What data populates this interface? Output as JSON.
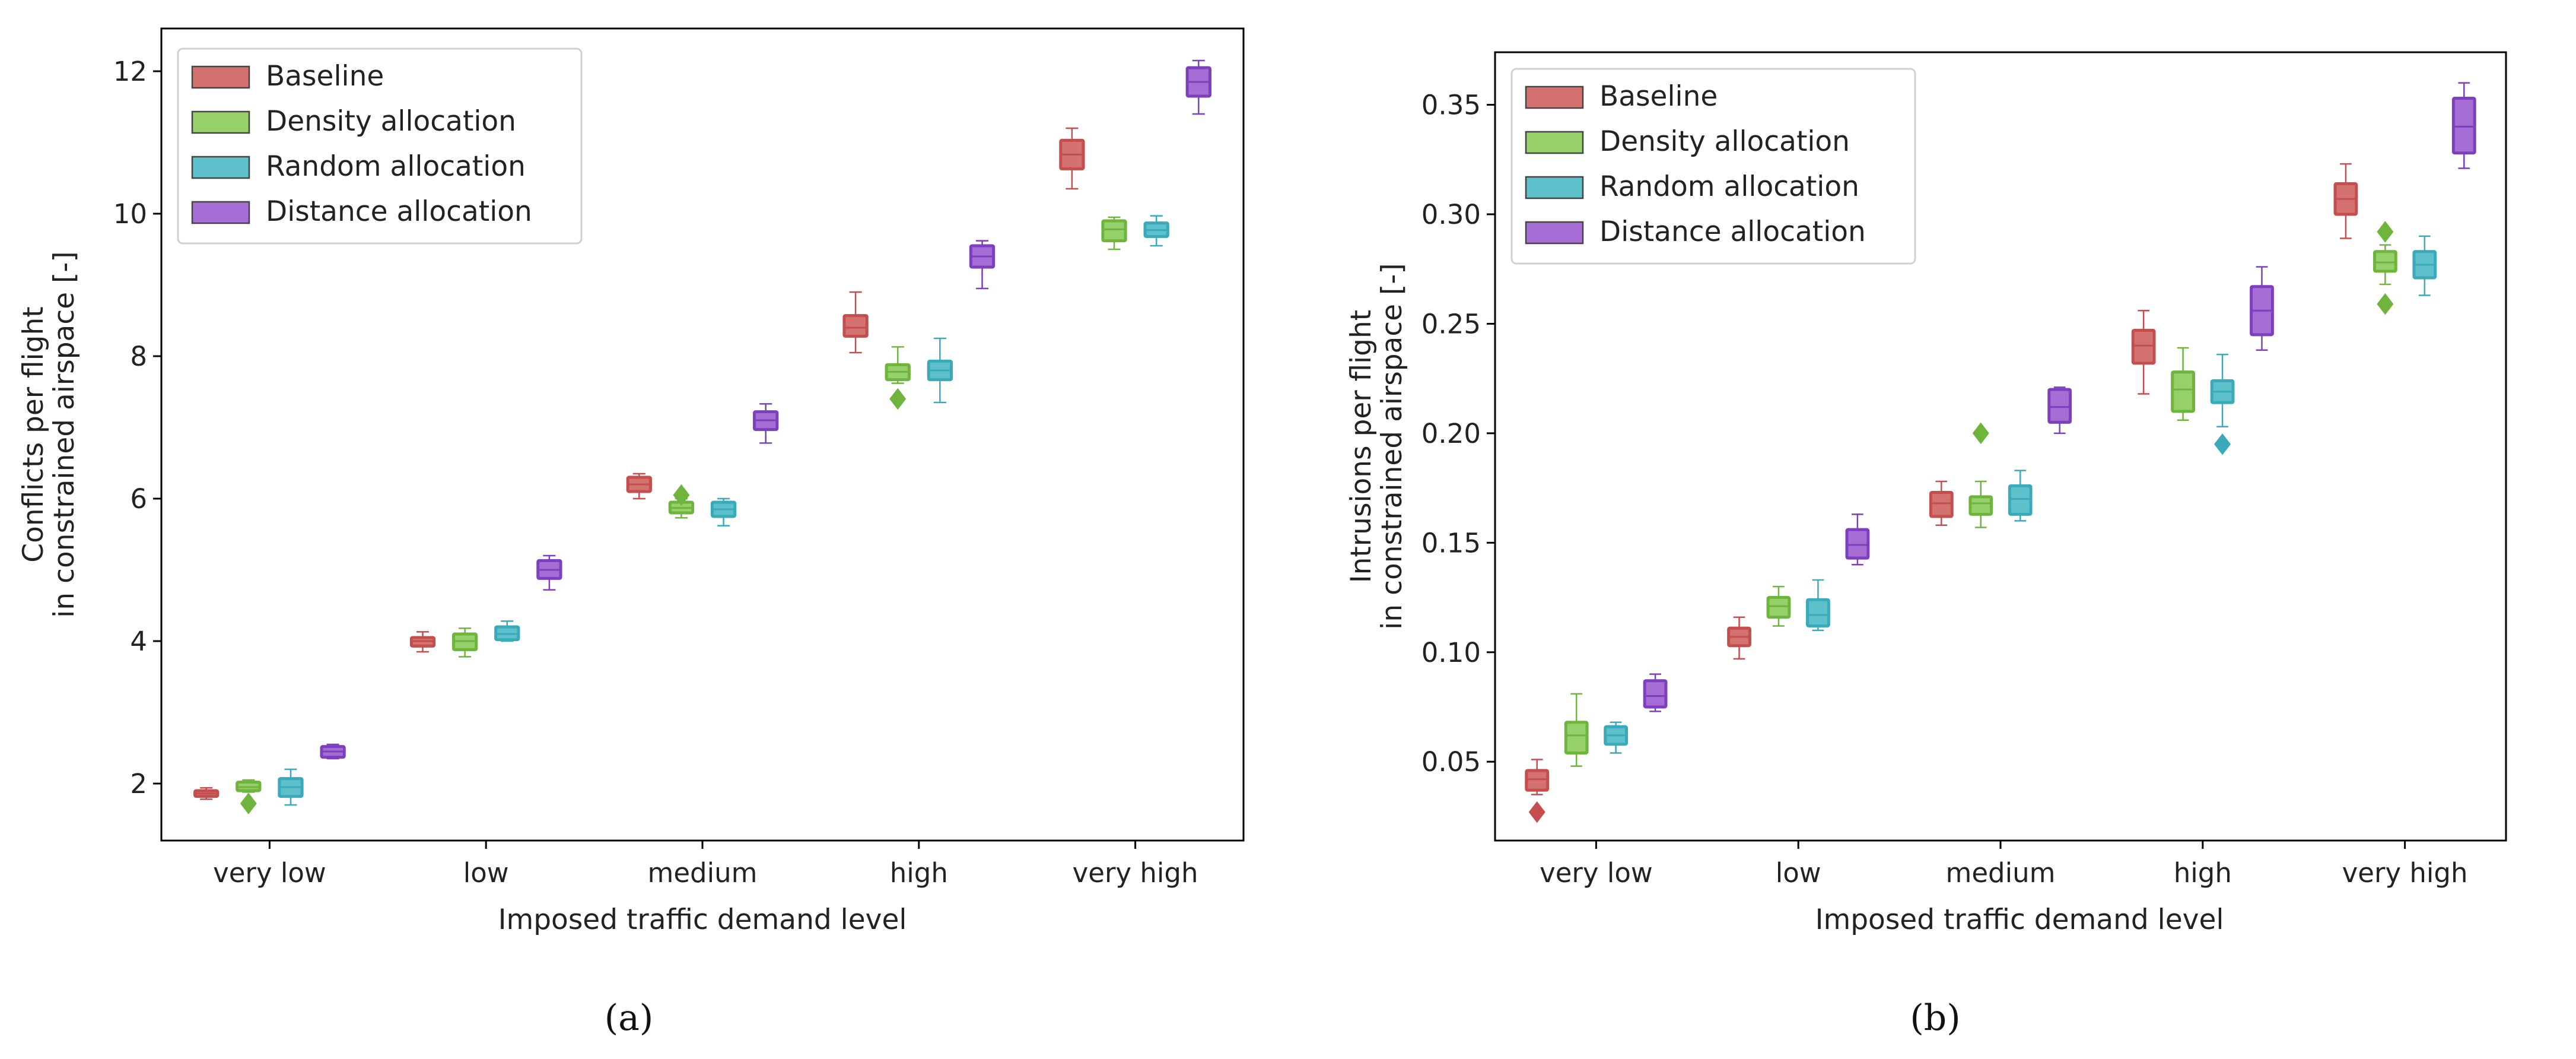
{
  "chart_data": [
    {
      "type": "box",
      "panel_label": "(a)",
      "xlabel": "Imposed traffic demand level",
      "ylabel_lines": [
        "Conflicts per flight",
        "in constrained airspace [-]"
      ],
      "categories": [
        "very low",
        "low",
        "medium",
        "high",
        "very high"
      ],
      "ylim": [
        1.2,
        12.6
      ],
      "yticks": [
        2,
        4,
        6,
        8,
        10,
        12
      ],
      "ytick_labels": [
        "2",
        "4",
        "6",
        "8",
        "10",
        "12"
      ],
      "legend_position": "top-left",
      "series": [
        {
          "name": "Baseline",
          "color": "#c44e4e",
          "fill": "#d47270",
          "boxes": [
            {
              "wlo": 1.78,
              "q1": 1.82,
              "med": 1.86,
              "q3": 1.9,
              "whi": 1.94,
              "fliers": []
            },
            {
              "wlo": 3.85,
              "q1": 3.93,
              "med": 4.0,
              "q3": 4.05,
              "whi": 4.13,
              "fliers": []
            },
            {
              "wlo": 6.0,
              "q1": 6.1,
              "med": 6.2,
              "q3": 6.3,
              "whi": 6.35,
              "fliers": []
            },
            {
              "wlo": 8.05,
              "q1": 8.28,
              "med": 8.4,
              "q3": 8.57,
              "whi": 8.9,
              "fliers": []
            },
            {
              "wlo": 10.35,
              "q1": 10.63,
              "med": 10.83,
              "q3": 11.03,
              "whi": 11.2,
              "fliers": []
            }
          ]
        },
        {
          "name": "Density allocation",
          "color": "#6fb43c",
          "fill": "#95d068",
          "boxes": [
            {
              "wlo": 1.88,
              "q1": 1.9,
              "med": 1.95,
              "q3": 2.02,
              "whi": 2.05,
              "fliers": [
                1.72
              ]
            },
            {
              "wlo": 3.78,
              "q1": 3.88,
              "med": 4.0,
              "q3": 4.1,
              "whi": 4.18,
              "fliers": []
            },
            {
              "wlo": 5.73,
              "q1": 5.8,
              "med": 5.87,
              "q3": 5.95,
              "whi": 6.0,
              "fliers": [
                6.05
              ]
            },
            {
              "wlo": 7.62,
              "q1": 7.67,
              "med": 7.78,
              "q3": 7.88,
              "whi": 8.13,
              "fliers": [
                7.4
              ]
            },
            {
              "wlo": 9.5,
              "q1": 9.62,
              "med": 9.78,
              "q3": 9.9,
              "whi": 9.95,
              "fliers": []
            }
          ]
        },
        {
          "name": "Random allocation",
          "color": "#3aaabb",
          "fill": "#5ec0cb",
          "boxes": [
            {
              "wlo": 1.7,
              "q1": 1.82,
              "med": 1.95,
              "q3": 2.07,
              "whi": 2.2,
              "fliers": []
            },
            {
              "wlo": 4.0,
              "q1": 4.02,
              "med": 4.1,
              "q3": 4.2,
              "whi": 4.28,
              "fliers": []
            },
            {
              "wlo": 5.62,
              "q1": 5.75,
              "med": 5.85,
              "q3": 5.95,
              "whi": 6.0,
              "fliers": []
            },
            {
              "wlo": 7.35,
              "q1": 7.67,
              "med": 7.8,
              "q3": 7.93,
              "whi": 8.25,
              "fliers": []
            },
            {
              "wlo": 9.55,
              "q1": 9.68,
              "med": 9.77,
              "q3": 9.87,
              "whi": 9.97,
              "fliers": []
            }
          ]
        },
        {
          "name": "Distance allocation",
          "color": "#7e3fbf",
          "fill": "#a66ed4",
          "boxes": [
            {
              "wlo": 2.35,
              "q1": 2.37,
              "med": 2.45,
              "q3": 2.52,
              "whi": 2.55,
              "fliers": []
            },
            {
              "wlo": 4.72,
              "q1": 4.88,
              "med": 5.0,
              "q3": 5.13,
              "whi": 5.2,
              "fliers": []
            },
            {
              "wlo": 6.78,
              "q1": 6.97,
              "med": 7.1,
              "q3": 7.22,
              "whi": 7.33,
              "fliers": []
            },
            {
              "wlo": 8.95,
              "q1": 9.25,
              "med": 9.4,
              "q3": 9.55,
              "whi": 9.62,
              "fliers": []
            },
            {
              "wlo": 11.4,
              "q1": 11.65,
              "med": 11.85,
              "q3": 12.05,
              "whi": 12.15,
              "fliers": []
            }
          ]
        }
      ]
    },
    {
      "type": "box",
      "panel_label": "(b)",
      "xlabel": "Imposed traffic demand level",
      "ylabel_lines": [
        "Intrusions per flight",
        "in constrained airspace [-]"
      ],
      "categories": [
        "very low",
        "low",
        "medium",
        "high",
        "very high"
      ],
      "ylim": [
        0.014,
        0.374
      ],
      "yticks": [
        0.05,
        0.1,
        0.15,
        0.2,
        0.25,
        0.3,
        0.35
      ],
      "ytick_labels": [
        "0.05",
        "0.10",
        "0.15",
        "0.20",
        "0.25",
        "0.30",
        "0.35"
      ],
      "legend_position": "top-left",
      "series": [
        {
          "name": "Baseline",
          "color": "#c44e4e",
          "fill": "#d47270",
          "boxes": [
            {
              "wlo": 0.035,
              "q1": 0.037,
              "med": 0.042,
              "q3": 0.046,
              "whi": 0.051,
              "fliers": [
                0.027
              ]
            },
            {
              "wlo": 0.097,
              "q1": 0.103,
              "med": 0.107,
              "q3": 0.111,
              "whi": 0.116,
              "fliers": []
            },
            {
              "wlo": 0.158,
              "q1": 0.162,
              "med": 0.168,
              "q3": 0.173,
              "whi": 0.178,
              "fliers": []
            },
            {
              "wlo": 0.218,
              "q1": 0.232,
              "med": 0.24,
              "q3": 0.247,
              "whi": 0.256,
              "fliers": []
            },
            {
              "wlo": 0.289,
              "q1": 0.3,
              "med": 0.307,
              "q3": 0.314,
              "whi": 0.323,
              "fliers": []
            }
          ]
        },
        {
          "name": "Density allocation",
          "color": "#6fb43c",
          "fill": "#95d068",
          "boxes": [
            {
              "wlo": 0.048,
              "q1": 0.054,
              "med": 0.062,
              "q3": 0.068,
              "whi": 0.081,
              "fliers": []
            },
            {
              "wlo": 0.112,
              "q1": 0.116,
              "med": 0.121,
              "q3": 0.125,
              "whi": 0.13,
              "fliers": []
            },
            {
              "wlo": 0.157,
              "q1": 0.163,
              "med": 0.168,
              "q3": 0.171,
              "whi": 0.178,
              "fliers": [
                0.2
              ]
            },
            {
              "wlo": 0.206,
              "q1": 0.21,
              "med": 0.22,
              "q3": 0.228,
              "whi": 0.239,
              "fliers": []
            },
            {
              "wlo": 0.268,
              "q1": 0.274,
              "med": 0.278,
              "q3": 0.283,
              "whi": 0.286,
              "fliers": [
                0.292,
                0.259
              ]
            }
          ]
        },
        {
          "name": "Random allocation",
          "color": "#3aaabb",
          "fill": "#5ec0cb",
          "boxes": [
            {
              "wlo": 0.054,
              "q1": 0.058,
              "med": 0.062,
              "q3": 0.066,
              "whi": 0.068,
              "fliers": []
            },
            {
              "wlo": 0.11,
              "q1": 0.112,
              "med": 0.117,
              "q3": 0.124,
              "whi": 0.133,
              "fliers": []
            },
            {
              "wlo": 0.16,
              "q1": 0.163,
              "med": 0.17,
              "q3": 0.176,
              "whi": 0.183,
              "fliers": []
            },
            {
              "wlo": 0.203,
              "q1": 0.214,
              "med": 0.219,
              "q3": 0.224,
              "whi": 0.236,
              "fliers": [
                0.195
              ]
            },
            {
              "wlo": 0.263,
              "q1": 0.271,
              "med": 0.277,
              "q3": 0.283,
              "whi": 0.29,
              "fliers": []
            }
          ]
        },
        {
          "name": "Distance allocation",
          "color": "#7e3fbf",
          "fill": "#a66ed4",
          "boxes": [
            {
              "wlo": 0.073,
              "q1": 0.075,
              "med": 0.08,
              "q3": 0.087,
              "whi": 0.09,
              "fliers": []
            },
            {
              "wlo": 0.14,
              "q1": 0.143,
              "med": 0.149,
              "q3": 0.156,
              "whi": 0.163,
              "fliers": []
            },
            {
              "wlo": 0.2,
              "q1": 0.205,
              "med": 0.212,
              "q3": 0.22,
              "whi": 0.221,
              "fliers": []
            },
            {
              "wlo": 0.238,
              "q1": 0.245,
              "med": 0.256,
              "q3": 0.267,
              "whi": 0.276,
              "fliers": []
            },
            {
              "wlo": 0.321,
              "q1": 0.328,
              "med": 0.34,
              "q3": 0.353,
              "whi": 0.36,
              "fliers": []
            }
          ]
        }
      ]
    }
  ]
}
